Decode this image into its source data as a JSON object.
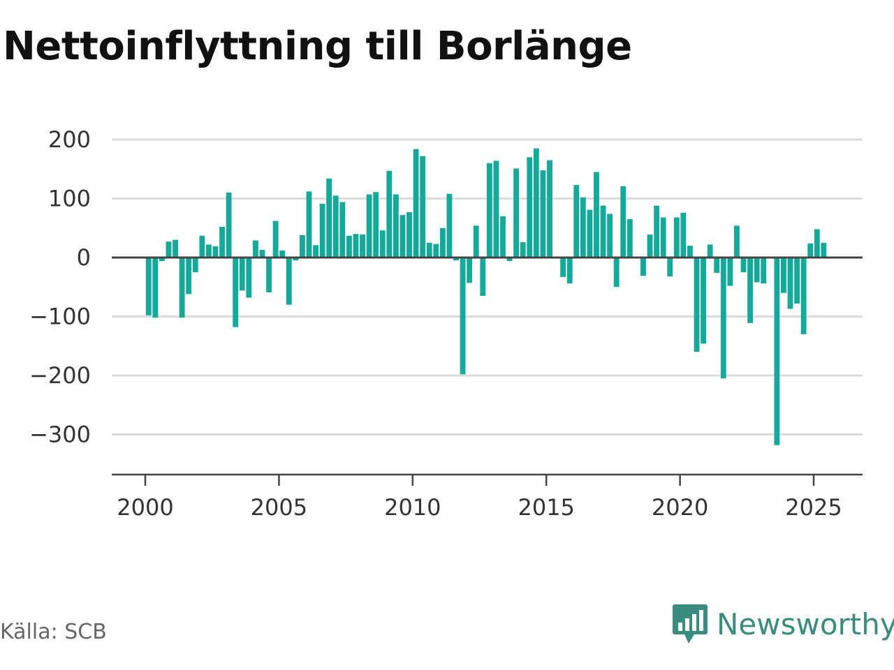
{
  "title": "Nettoinflyttning till Borlänge",
  "source": "Källa: SCB",
  "brand": {
    "name": "Newsworthy",
    "icon": "chart-bubble-icon"
  },
  "colors": {
    "bar": "#14a99a",
    "grid": "#dcdcdc",
    "zero": "#444444",
    "text": "#333333",
    "brand": "#3a8c7e"
  },
  "chart_data": {
    "type": "bar",
    "title": "Nettoinflyttning till Borlänge",
    "xlabel": "",
    "ylabel": "",
    "grid": true,
    "ylim": [
      -370,
      215
    ],
    "xlim": [
      1999.25,
      2026.25
    ],
    "yticks": [
      200,
      100,
      0,
      -100,
      -200,
      -300
    ],
    "ytick_labels": [
      "200",
      "100",
      "0",
      "−100",
      "−200",
      "−300"
    ],
    "xticks": [
      2000,
      2005,
      2010,
      2015,
      2020,
      2025
    ],
    "xtick_labels": [
      "2000",
      "2005",
      "2010",
      "2015",
      "2020",
      "2025"
    ],
    "x": [
      2000.125,
      2000.375,
      2000.625,
      2000.875,
      2001.125,
      2001.375,
      2001.625,
      2001.875,
      2002.125,
      2002.375,
      2002.625,
      2002.875,
      2003.125,
      2003.375,
      2003.625,
      2003.875,
      2004.125,
      2004.375,
      2004.625,
      2004.875,
      2005.125,
      2005.375,
      2005.625,
      2005.875,
      2006.125,
      2006.375,
      2006.625,
      2006.875,
      2007.125,
      2007.375,
      2007.625,
      2007.875,
      2008.125,
      2008.375,
      2008.625,
      2008.875,
      2009.125,
      2009.375,
      2009.625,
      2009.875,
      2010.125,
      2010.375,
      2010.625,
      2010.875,
      2011.125,
      2011.375,
      2011.625,
      2011.875,
      2012.125,
      2012.375,
      2012.625,
      2012.875,
      2013.125,
      2013.375,
      2013.625,
      2013.875,
      2014.125,
      2014.375,
      2014.625,
      2014.875,
      2015.125,
      2015.375,
      2015.625,
      2015.875,
      2016.125,
      2016.375,
      2016.625,
      2016.875,
      2017.125,
      2017.375,
      2017.625,
      2017.875,
      2018.125,
      2018.375,
      2018.625,
      2018.875,
      2019.125,
      2019.375,
      2019.625,
      2019.875,
      2020.125,
      2020.375,
      2020.625,
      2020.875,
      2021.125,
      2021.375,
      2021.625,
      2021.875,
      2022.125,
      2022.375,
      2022.625,
      2022.875,
      2023.125,
      2023.375,
      2023.625,
      2023.875,
      2024.125,
      2024.375,
      2024.625,
      2024.875,
      2025.125,
      2025.375
    ],
    "values": [
      -98,
      -102,
      -6,
      27,
      30,
      -102,
      -62,
      -25,
      37,
      22,
      19,
      52,
      110,
      -118,
      -56,
      -68,
      29,
      13,
      -59,
      62,
      12,
      -80,
      -5,
      38,
      112,
      21,
      91,
      134,
      105,
      94,
      37,
      40,
      39,
      107,
      111,
      46,
      147,
      107,
      72,
      77,
      184,
      172,
      25,
      23,
      50,
      108,
      -5,
      -198,
      -43,
      54,
      -65,
      160,
      164,
      70,
      -6,
      151,
      26,
      170,
      185,
      148,
      165,
      0,
      -33,
      -44,
      123,
      102,
      81,
      145,
      88,
      74,
      -50,
      121,
      65,
      0,
      -31,
      39,
      88,
      68,
      -32,
      68,
      76,
      20,
      -160,
      -146,
      22,
      -26,
      -205,
      -48,
      54,
      -25,
      -111,
      -42,
      -44,
      0,
      -318,
      -60,
      -87,
      -78,
      -130,
      24,
      48,
      25
    ]
  }
}
